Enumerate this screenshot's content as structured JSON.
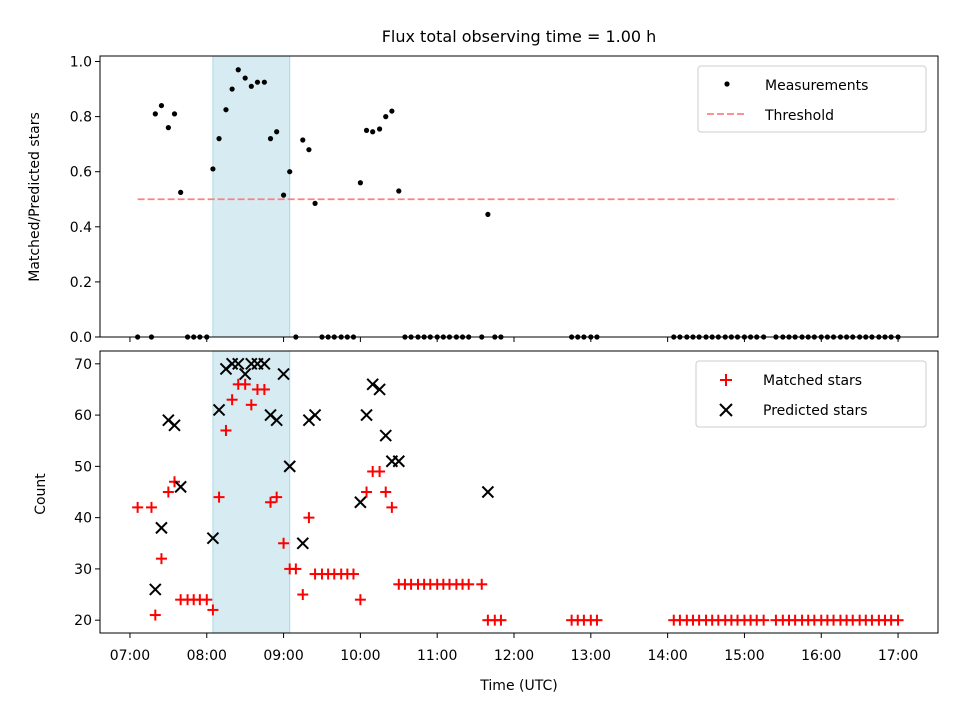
{
  "title": "Flux total observing time = 1.00 h",
  "colors": {
    "highlight": "#add8e6",
    "threshold": "#ff8080",
    "matched": "#ff0000",
    "predicted": "#000000",
    "measurement": "#000000"
  },
  "chart_data": [
    {
      "type": "scatter",
      "name": "ratio-panel",
      "ylabel": "Matched/Predicted stars",
      "xlim": [
        6.61,
        17.52
      ],
      "ylim": [
        0.0,
        1.02
      ],
      "yticks": [
        0.0,
        0.2,
        0.4,
        0.6,
        0.8,
        1.0
      ],
      "yticklabels": [
        "0.0",
        "0.2",
        "0.4",
        "0.6",
        "0.8",
        "1.0"
      ],
      "highlight_span": [
        8.08,
        9.08
      ],
      "legend": {
        "location": "top-right",
        "measurements_label": "Measurements",
        "threshold_label": "Threshold"
      },
      "threshold": {
        "value": 0.5,
        "x": [
          7.1,
          17.0
        ]
      },
      "measurements": {
        "x": [
          7.1,
          7.28,
          7.33,
          7.41,
          7.5,
          7.58,
          7.66,
          7.75,
          7.83,
          7.91,
          8.0,
          8.08,
          8.16,
          8.25,
          8.33,
          8.41,
          8.5,
          8.58,
          8.66,
          8.75,
          8.83,
          8.91,
          9.0,
          9.08,
          9.16,
          9.25,
          9.33,
          9.41,
          9.5,
          9.58,
          9.66,
          9.75,
          9.83,
          9.91,
          10.0,
          10.08,
          10.16,
          10.25,
          10.33,
          10.41,
          10.5,
          10.58,
          10.66,
          10.75,
          10.83,
          10.91,
          11.0,
          11.08,
          11.16,
          11.25,
          11.33,
          11.41,
          11.58,
          11.66,
          11.75,
          11.83,
          12.75,
          12.83,
          12.91,
          13.0,
          13.08,
          14.08,
          14.16,
          14.25,
          14.33,
          14.41,
          14.5,
          14.58,
          14.66,
          14.75,
          14.83,
          14.91,
          15.0,
          15.08,
          15.16,
          15.25,
          15.41,
          15.5,
          15.58,
          15.66,
          15.75,
          15.83,
          15.91,
          16.0,
          16.08,
          16.16,
          16.25,
          16.33,
          16.41,
          16.5,
          16.58,
          16.66,
          16.75,
          16.83,
          16.91,
          17.0
        ],
        "y": [
          0.0,
          0.0,
          0.81,
          0.84,
          0.76,
          0.81,
          0.525,
          0.0,
          0.0,
          0.0,
          0.0,
          0.61,
          0.72,
          0.825,
          0.9,
          0.97,
          0.94,
          0.91,
          0.925,
          0.925,
          0.72,
          0.745,
          0.515,
          0.6,
          0.0,
          0.715,
          0.68,
          0.485,
          0.0,
          0.0,
          0.0,
          0.0,
          0.0,
          0.0,
          0.56,
          0.75,
          0.745,
          0.755,
          0.8,
          0.82,
          0.53,
          0.0,
          0.0,
          0.0,
          0.0,
          0.0,
          0.0,
          0.0,
          0.0,
          0.0,
          0.0,
          0.0,
          0.0,
          0.445,
          0.0,
          0.0,
          0.0,
          0.0,
          0.0,
          0.0,
          0.0,
          0.0,
          0.0,
          0.0,
          0.0,
          0.0,
          0.0,
          0.0,
          0.0,
          0.0,
          0.0,
          0.0,
          0.0,
          0.0,
          0.0,
          0.0,
          0.0,
          0.0,
          0.0,
          0.0,
          0.0,
          0.0,
          0.0,
          0.0,
          0.0,
          0.0,
          0.0,
          0.0,
          0.0,
          0.0,
          0.0,
          0.0,
          0.0,
          0.0,
          0.0,
          0.0
        ]
      }
    },
    {
      "type": "scatter",
      "name": "count-panel",
      "xlabel": "Time (UTC)",
      "ylabel": "Count",
      "xlim": [
        6.61,
        17.52
      ],
      "ylim": [
        17.5,
        72.5
      ],
      "xticks": [
        7,
        8,
        9,
        10,
        11,
        12,
        13,
        14,
        15,
        16,
        17
      ],
      "xticklabels": [
        "07:00",
        "08:00",
        "09:00",
        "10:00",
        "11:00",
        "12:00",
        "13:00",
        "14:00",
        "15:00",
        "16:00",
        "17:00"
      ],
      "yticks": [
        20,
        30,
        40,
        50,
        60,
        70
      ],
      "yticklabels": [
        "20",
        "30",
        "40",
        "50",
        "60",
        "70"
      ],
      "highlight_span": [
        8.08,
        9.08
      ],
      "legend": {
        "location": "top-right",
        "matched_label": "Matched stars",
        "predicted_label": "Predicted stars"
      },
      "matched": {
        "x": [
          7.1,
          7.28,
          7.33,
          7.41,
          7.5,
          7.58,
          7.66,
          7.75,
          7.83,
          7.91,
          8.0,
          8.08,
          8.16,
          8.25,
          8.33,
          8.41,
          8.5,
          8.58,
          8.66,
          8.75,
          8.83,
          8.91,
          9.0,
          9.08,
          9.16,
          9.25,
          9.33,
          9.41,
          9.5,
          9.58,
          9.66,
          9.75,
          9.83,
          9.91,
          10.0,
          10.08,
          10.16,
          10.25,
          10.33,
          10.41,
          10.5,
          10.58,
          10.66,
          10.75,
          10.83,
          10.91,
          11.0,
          11.08,
          11.16,
          11.25,
          11.33,
          11.41,
          11.58,
          11.66,
          11.75,
          11.83,
          12.75,
          12.83,
          12.91,
          13.0,
          13.08,
          14.08,
          14.16,
          14.25,
          14.33,
          14.41,
          14.5,
          14.58,
          14.66,
          14.75,
          14.83,
          14.91,
          15.0,
          15.08,
          15.16,
          15.25,
          15.41,
          15.5,
          15.58,
          15.66,
          15.75,
          15.83,
          15.91,
          16.0,
          16.08,
          16.16,
          16.25,
          16.33,
          16.41,
          16.5,
          16.58,
          16.66,
          16.75,
          16.83,
          16.91,
          17.0
        ],
        "y": [
          42,
          42,
          21,
          32,
          45,
          47,
          24,
          24,
          24,
          24,
          24,
          22,
          44,
          57,
          63,
          66,
          66,
          62,
          65,
          65,
          43,
          44,
          35,
          30,
          30,
          25,
          40,
          29,
          29,
          29,
          29,
          29,
          29,
          29,
          24,
          45,
          49,
          49,
          45,
          42,
          27,
          27,
          27,
          27,
          27,
          27,
          27,
          27,
          27,
          27,
          27,
          27,
          27,
          20,
          20,
          20,
          20,
          20,
          20,
          20,
          20,
          20,
          20,
          20,
          20,
          20,
          20,
          20,
          20,
          20,
          20,
          20,
          20,
          20,
          20,
          20,
          20,
          20,
          20,
          20,
          20,
          20,
          20,
          20,
          20,
          20,
          20,
          20,
          20,
          20,
          20,
          20,
          20,
          20,
          20,
          20
        ]
      },
      "predicted": {
        "x": [
          7.33,
          7.41,
          7.5,
          7.58,
          7.66,
          8.08,
          8.16,
          8.25,
          8.33,
          8.41,
          8.5,
          8.58,
          8.66,
          8.75,
          8.83,
          8.91,
          9.0,
          9.08,
          9.25,
          9.33,
          9.41,
          10.0,
          10.08,
          10.16,
          10.25,
          10.33,
          10.41,
          10.5,
          11.66
        ],
        "y": [
          26,
          38,
          59,
          58,
          46,
          36,
          61,
          69,
          70,
          70,
          68,
          70,
          70,
          70,
          60,
          59,
          68,
          50,
          35,
          59,
          60,
          43,
          60,
          66,
          65,
          56,
          51,
          51,
          45
        ]
      }
    }
  ]
}
